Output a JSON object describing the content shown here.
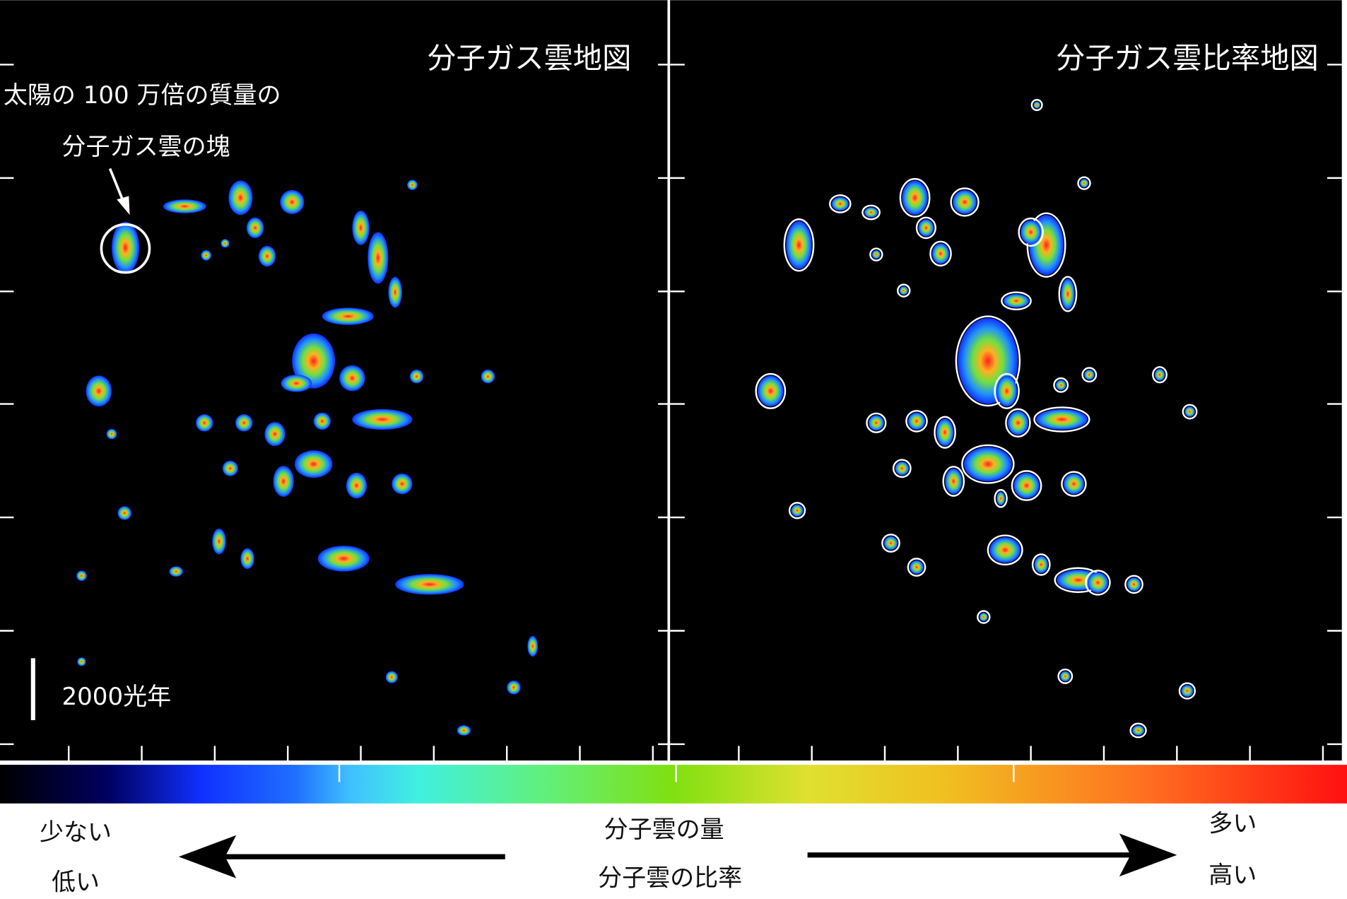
{
  "left_panel": {
    "title": "分子ガス雲地図",
    "annotation": [
      "太陽の 100 万倍の質量の",
      "分子ガス雲の塊"
    ],
    "scale_bar": "2000光年"
  },
  "right_panel": {
    "title": "分子ガス雲比率地図"
  },
  "colorbar": {
    "low": [
      "少ない",
      "低い"
    ],
    "center": [
      "分子雲の量",
      "分子雲の比率"
    ],
    "high": [
      "多い",
      "高い"
    ]
  }
}
